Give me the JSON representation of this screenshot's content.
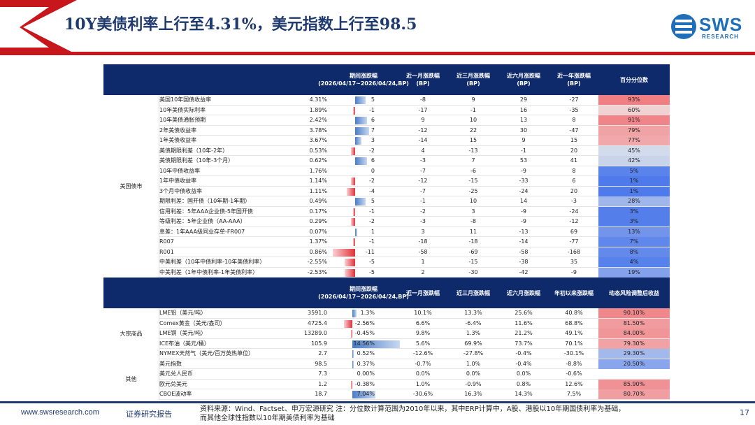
{
  "header": {
    "title": "10Y美债利率上行至4.31%，美元指数上行至98.5"
  },
  "logo": {
    "text": "SWS",
    "sub": "RESEARCH"
  },
  "bond_header": {
    "period": "期间涨跌幅\n(2026/04/17~2026/04/24,BP)",
    "m1": "近一月涨跌幅\n(BP)",
    "m3": "近三月涨跌幅\n(BP)",
    "m6": "近六月涨跌幅\n(BP)",
    "y1": "近一年涨跌幅\n(BP)",
    "pct": "百分分位数"
  },
  "other_header": {
    "period": "期间涨跌幅\n(2026/04/17~2026/04/24,BP)",
    "m1": "近一月涨跌幅",
    "m3": "近三月涨跌幅",
    "m6": "近六月涨跌幅",
    "ytd": "年初以来涨跌幅",
    "pct": "动态风险调整后收益"
  },
  "groups": {
    "bond": "美国债市",
    "commodity": "大宗商品",
    "other": "其他"
  },
  "bond_rows": [
    {
      "name": "美国10年国债收益率",
      "val": "4.31%",
      "chg": "5",
      "n": 5,
      "m1": "-8",
      "m3": "9",
      "m6": "29",
      "y1": "-27",
      "pct": "93%",
      "p": 0.93
    },
    {
      "name": "10年美债实际利率",
      "val": "1.89%",
      "chg": "-1",
      "n": -1,
      "m1": "-17",
      "m3": "-1",
      "m6": "16",
      "y1": "-35",
      "pct": "60%",
      "p": 0.6
    },
    {
      "name": "10年美债通胀预期",
      "val": "2.42%",
      "chg": "6",
      "n": 6,
      "m1": "9",
      "m3": "10",
      "m6": "13",
      "y1": "8",
      "pct": "91%",
      "p": 0.91
    },
    {
      "name": "2年美债收益率",
      "val": "3.78%",
      "chg": "7",
      "n": 7,
      "m1": "-12",
      "m3": "22",
      "m6": "30",
      "y1": "-47",
      "pct": "79%",
      "p": 0.79
    },
    {
      "name": "1年美债收益率",
      "val": "3.67%",
      "chg": "3",
      "n": 3,
      "m1": "-14",
      "m3": "15",
      "m6": "9",
      "y1": "15",
      "pct": "77%",
      "p": 0.77
    },
    {
      "name": "美债期限利差（10年-2年）",
      "val": "0.53%",
      "chg": "-2",
      "n": -2,
      "m1": "4",
      "m3": "-13",
      "m6": "-1",
      "y1": "20",
      "pct": "45%",
      "p": 0.45
    },
    {
      "name": "美债期限利差（10年-3个月）",
      "val": "0.62%",
      "chg": "6",
      "n": 6,
      "m1": "-3",
      "m3": "7",
      "m6": "53",
      "y1": "41",
      "pct": "42%",
      "p": 0.42
    },
    {
      "name": "10年中债收益率",
      "val": "1.76%",
      "chg": "0",
      "n": 0,
      "m1": "-7",
      "m3": "-6",
      "m6": "-9",
      "y1": "8",
      "pct": "5%",
      "p": 0.05
    },
    {
      "name": "1年中债收益率",
      "val": "1.14%",
      "chg": "-2",
      "n": -2,
      "m1": "-12",
      "m3": "-15",
      "m6": "-33",
      "y1": "6",
      "pct": "1%",
      "p": 0.01
    },
    {
      "name": "3个月中债收益率",
      "val": "1.11%",
      "chg": "-4",
      "n": -4,
      "m1": "-7",
      "m3": "-25",
      "m6": "-24",
      "y1": "20",
      "pct": "1%",
      "p": 0.01
    },
    {
      "name": "期限利差：国开债（10年期-1年期）",
      "val": "0.49%",
      "chg": "5",
      "n": 5,
      "m1": "-1",
      "m3": "10",
      "m6": "14",
      "y1": "-3",
      "pct": "28%",
      "p": 0.28
    },
    {
      "name": "信用利差：5年AAA企业债-5年国开债",
      "val": "0.17%",
      "chg": "-1",
      "n": -1,
      "m1": "-2",
      "m3": "3",
      "m6": "-9",
      "y1": "-24",
      "pct": "3%",
      "p": 0.03
    },
    {
      "name": "等级利差：5年企业债（AA-AAA）",
      "val": "0.29%",
      "chg": "-2",
      "n": -2,
      "m1": "-3",
      "m3": "-8",
      "m6": "-9",
      "y1": "-12",
      "pct": "3%",
      "p": 0.03
    },
    {
      "name": "息差：1年AAA级同业存单-FR007",
      "val": "0.07%",
      "chg": "1",
      "n": 1,
      "m1": "3",
      "m3": "11",
      "m6": "-13",
      "y1": "69",
      "pct": "13%",
      "p": 0.13
    },
    {
      "name": "R007",
      "val": "1.37%",
      "chg": "-1",
      "n": -1,
      "m1": "-18",
      "m3": "-18",
      "m6": "-14",
      "y1": "-77",
      "pct": "7%",
      "p": 0.07
    },
    {
      "name": "R001",
      "val": "0.86%",
      "chg": "-11",
      "n": -11,
      "m1": "-58",
      "m3": "-69",
      "m6": "-58",
      "y1": "-168",
      "pct": "8%",
      "p": 0.08
    },
    {
      "name": "中美利差（10年中债利率-10年美债利率）",
      "val": "-2.55%",
      "chg": "-5",
      "n": -5,
      "m1": "1",
      "m3": "-15",
      "m6": "-38",
      "y1": "35",
      "pct": "4%",
      "p": 0.04
    },
    {
      "name": "中美利差（1年中债利率-1年美债利率）",
      "val": "-2.53%",
      "chg": "-5",
      "n": -5,
      "m1": "2",
      "m3": "-30",
      "m6": "-42",
      "y1": "-9",
      "pct": "19%",
      "p": 0.19
    }
  ],
  "other_rows": [
    {
      "g": "c",
      "name": "LME铝（美元/吨）",
      "val": "3591.0",
      "chg": "1.3%",
      "n": 1.3,
      "m1": "10.1%",
      "m3": "13.3%",
      "m6": "25.6%",
      "y1": "40.8%",
      "pct": "90.10%",
      "p": 0.9
    },
    {
      "g": "c",
      "name": "Comex黄金（美元/盎司）",
      "val": "4725.4",
      "chg": "-2.56%",
      "n": -2.56,
      "m1": "6.6%",
      "m3": "-6.4%",
      "m6": "11.6%",
      "y1": "68.8%",
      "pct": "81.50%",
      "p": 0.815
    },
    {
      "g": "c",
      "name": "LME铜（美元/吨）",
      "val": "13289.0",
      "chg": "-0.45%",
      "n": -0.45,
      "m1": "9.8%",
      "m3": "1.3%",
      "m6": "21.2%",
      "y1": "49.1%",
      "pct": "84.00%",
      "p": 0.84
    },
    {
      "g": "c",
      "name": "ICE布油（美元/桶）",
      "val": "105.9",
      "chg": "14.56%",
      "n": 14.56,
      "m1": "5.6%",
      "m3": "69.9%",
      "m6": "73.7%",
      "y1": "70.1%",
      "pct": "79.30%",
      "p": 0.793
    },
    {
      "g": "c",
      "name": "NYMEX天然气（美元/百万英热单位）",
      "val": "2.7",
      "chg": "0.52%",
      "n": 0.52,
      "m1": "-12.6%",
      "m3": "-27.8%",
      "m6": "-0.4%",
      "y1": "-30.1%",
      "pct": "29.30%",
      "p": 0.293
    },
    {
      "g": "o",
      "name": "美元指数",
      "val": "98.5",
      "chg": "0.37%",
      "n": 0.37,
      "m1": "-0.7%",
      "m3": "1.0%",
      "m6": "-0.4%",
      "y1": "-8.8%",
      "pct": "20.50%",
      "p": 0.205
    },
    {
      "g": "o",
      "name": "美元兑人民币",
      "val": "7.3",
      "chg": "0.00%",
      "n": 0,
      "m1": "0.0%",
      "m3": "0.0%",
      "m6": "0.0%",
      "y1": "-0.6%",
      "pct": "",
      "p": null
    },
    {
      "g": "o",
      "name": "欧元兑美元",
      "val": "1.2",
      "chg": "-0.38%",
      "n": -0.38,
      "m1": "1.0%",
      "m3": "-0.9%",
      "m6": "0.8%",
      "y1": "12.6%",
      "pct": "85.90%",
      "p": 0.859
    },
    {
      "g": "o",
      "name": "CBOE波动率",
      "val": "18.7",
      "chg": "7.04%",
      "n": 7.04,
      "m1": "-30.6%",
      "m3": "16.3%",
      "m6": "14.3%",
      "y1": "7.5%",
      "pct": "80.70%",
      "p": 0.807
    }
  ],
  "footer": {
    "url": "www.swsresearch.com",
    "label": "证券研究报告",
    "note": "资料来源：Wind、Factset、申万宏源研究 注：分位数计算范围为2010年以来，其中ERP计算中，A股、港股以10年期国债利率为基础，而其他全球性指数以10年期美债利率为基础",
    "page": "17"
  },
  "colors": {
    "navy": "#0f2a6b",
    "red": "#c8161d",
    "barPos": "#4a7cc7",
    "barNeg": "#e0303a"
  }
}
